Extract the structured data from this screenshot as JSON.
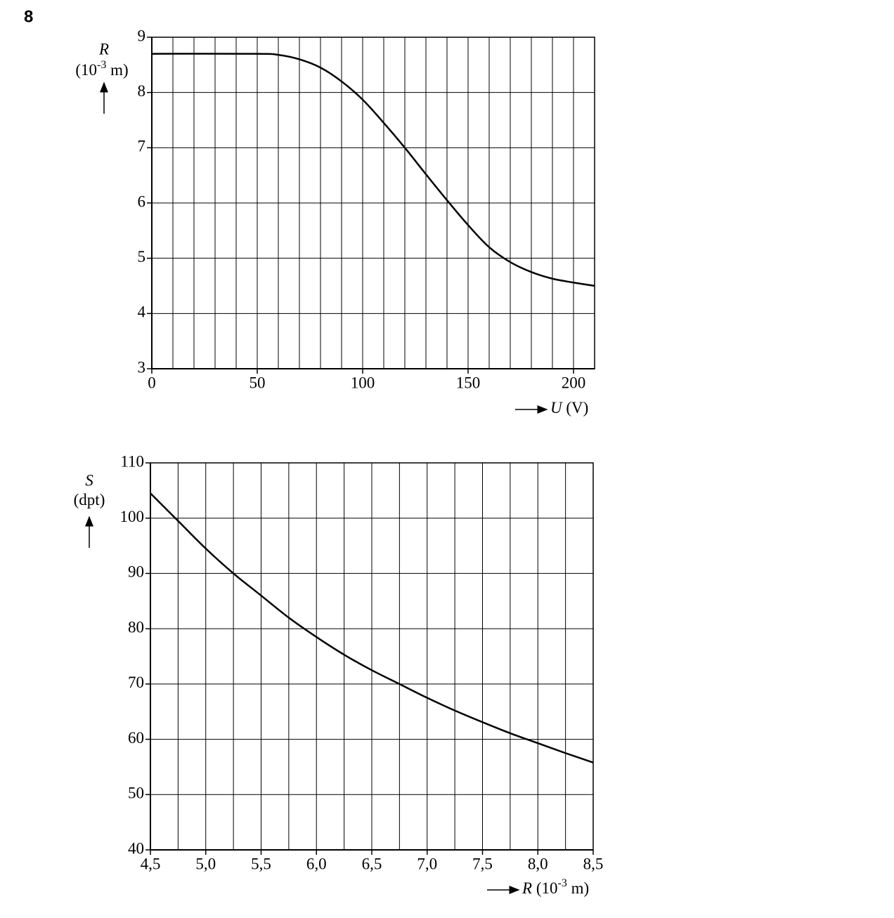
{
  "question": "8",
  "chart_data": [
    {
      "type": "line",
      "xlabel": "U",
      "xunit": "(V)",
      "ylabel": "R",
      "yunit": [
        "(10",
        "-3",
        " m)"
      ],
      "x": [
        0,
        50,
        60,
        70,
        80,
        90,
        100,
        110,
        120,
        130,
        140,
        150,
        160,
        170,
        180,
        190,
        200,
        210
      ],
      "series": [
        {
          "color": "#000000",
          "values": [
            8.7,
            8.7,
            8.68,
            8.6,
            8.45,
            8.2,
            7.87,
            7.45,
            7.0,
            6.52,
            6.05,
            5.6,
            5.2,
            4.93,
            4.75,
            4.63,
            4.56,
            4.5
          ]
        }
      ],
      "xlim": [
        0,
        210
      ],
      "xticks": [
        0,
        50,
        100,
        150,
        200
      ],
      "ylim": [
        3,
        9
      ],
      "yticks": [
        3,
        4,
        5,
        6,
        7,
        8,
        9
      ],
      "grid": true,
      "xgrid_step": 10,
      "ygrid_step": 1
    },
    {
      "type": "line",
      "xlabel": "R",
      "xunit": [
        "(10",
        "-3",
        " m)"
      ],
      "ylabel": "S",
      "yunit": "(dpt)",
      "x": [
        4.5,
        4.75,
        5.0,
        5.25,
        5.5,
        5.75,
        6.0,
        6.25,
        6.5,
        6.75,
        7.0,
        7.25,
        7.5,
        7.75,
        8.0,
        8.25,
        8.5
      ],
      "series": [
        {
          "color": "#000000",
          "values": [
            104.5,
            99.5,
            94.5,
            90,
            86,
            82,
            78.5,
            75.3,
            72.5,
            70,
            67.5,
            65.2,
            63.1,
            61.1,
            59.3,
            57.5,
            55.8
          ]
        }
      ],
      "xlim": [
        4.5,
        8.5
      ],
      "xticks": [
        {
          "value": 4.5,
          "label": "4,5"
        },
        {
          "value": 5.0,
          "label": "5,0"
        },
        {
          "value": 5.5,
          "label": "5,5"
        },
        {
          "value": 6.0,
          "label": "6,0"
        },
        {
          "value": 6.5,
          "label": "6,5"
        },
        {
          "value": 7.0,
          "label": "7,0"
        },
        {
          "value": 7.5,
          "label": "7,5"
        },
        {
          "value": 8.0,
          "label": "8,0"
        },
        {
          "value": 8.5,
          "label": "8,5"
        }
      ],
      "ylim": [
        40,
        110
      ],
      "yticks": [
        40,
        50,
        60,
        70,
        80,
        90,
        100,
        110
      ],
      "grid": true,
      "xgrid_step": 0.25,
      "ygrid_step": 10
    }
  ]
}
